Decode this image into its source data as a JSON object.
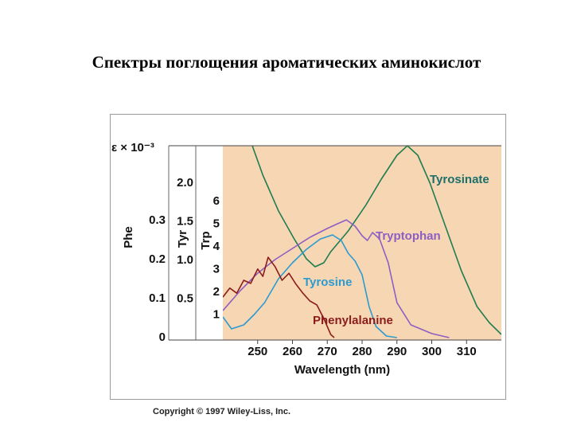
{
  "chart_data": {
    "type": "line",
    "title": "Спектры поглощения ароматических аминокислот",
    "xlabel": "Wavelength (nm)",
    "yunit": "ε × 10⁻³",
    "xlim": [
      240,
      320
    ],
    "xticks": [
      250,
      260,
      270,
      280,
      290,
      300,
      310
    ],
    "ylabel": "Phe",
    "ylim": [
      0,
      0.492
    ],
    "yticks": [
      0,
      0.1,
      0.2,
      0.3
    ],
    "y2label": "Tyr",
    "y2lim": [
      0,
      2.485
    ],
    "y2ticks": [
      0.5,
      {
        "value": 1,
        "label": "1.0"
      },
      1.5,
      {
        "value": 2,
        "label": "2.0"
      }
    ],
    "y3label": "Trp",
    "y3lim": [
      0,
      8.456
    ],
    "y3ticks": [
      1,
      2,
      3,
      4,
      5,
      6
    ],
    "background": "#f7d6b4",
    "series": [
      {
        "name": "Tyrosinate",
        "color": "#1f7d4f",
        "label_color": "#1d6f6a",
        "axis": "y2",
        "x": [
          248.5,
          251.5,
          256,
          260.5,
          264,
          266.5,
          269,
          271,
          276,
          281,
          285.5,
          290,
          293,
          296,
          299.5,
          304,
          308.5,
          313,
          316.5,
          320
        ],
        "values": [
          2.48,
          2.103,
          1.639,
          1.278,
          1.021,
          0.918,
          0.969,
          1.113,
          1.381,
          1.711,
          2.052,
          2.361,
          2.485,
          2.361,
          2.0,
          1.433,
          0.866,
          0.402,
          0.196,
          0.041
        ]
      },
      {
        "name": "Tryptophan",
        "color": "#8d5fc2",
        "label_color": "#8d5fc2",
        "axis": "y3",
        "x": [
          240,
          245,
          250,
          255,
          260,
          265,
          270,
          273,
          275.5,
          278,
          280,
          281.5,
          283,
          285,
          287.5,
          290,
          294,
          300,
          305
        ],
        "values": [
          1.19,
          2.07,
          2.84,
          3.44,
          3.93,
          4.42,
          4.81,
          5.02,
          5.19,
          4.91,
          4.49,
          4.28,
          4.63,
          4.35,
          3.3,
          1.54,
          0.56,
          0.18,
          0
        ]
      },
      {
        "name": "Tyrosine",
        "color": "#2b9bd0",
        "label_color": "#2b9bd0",
        "axis": "y2",
        "x": [
          240,
          242.5,
          246,
          249,
          252,
          256,
          260,
          264,
          268,
          271.5,
          274,
          276,
          278,
          280,
          282,
          284,
          287,
          290
        ],
        "values": [
          0.268,
          0.113,
          0.165,
          0.299,
          0.454,
          0.763,
          0.969,
          1.144,
          1.278,
          1.33,
          1.258,
          1.093,
          0.99,
          0.814,
          0.402,
          0.144,
          0.021,
          0
        ]
      },
      {
        "name": "Phenylalanine",
        "color": "#8b1c1c",
        "label_color": "#8b1c1c",
        "axis": "y",
        "x": [
          240,
          242,
          244,
          246,
          248,
          250,
          251.5,
          253,
          255,
          257,
          259,
          261,
          263,
          265,
          267,
          269,
          271,
          272
        ],
        "values": [
          0.104,
          0.127,
          0.114,
          0.147,
          0.139,
          0.176,
          0.157,
          0.206,
          0.182,
          0.147,
          0.165,
          0.137,
          0.114,
          0.094,
          0.084,
          0.049,
          0.008,
          0
        ]
      }
    ],
    "credit": "Copyright © 1997 Wiley-Liss, Inc."
  }
}
